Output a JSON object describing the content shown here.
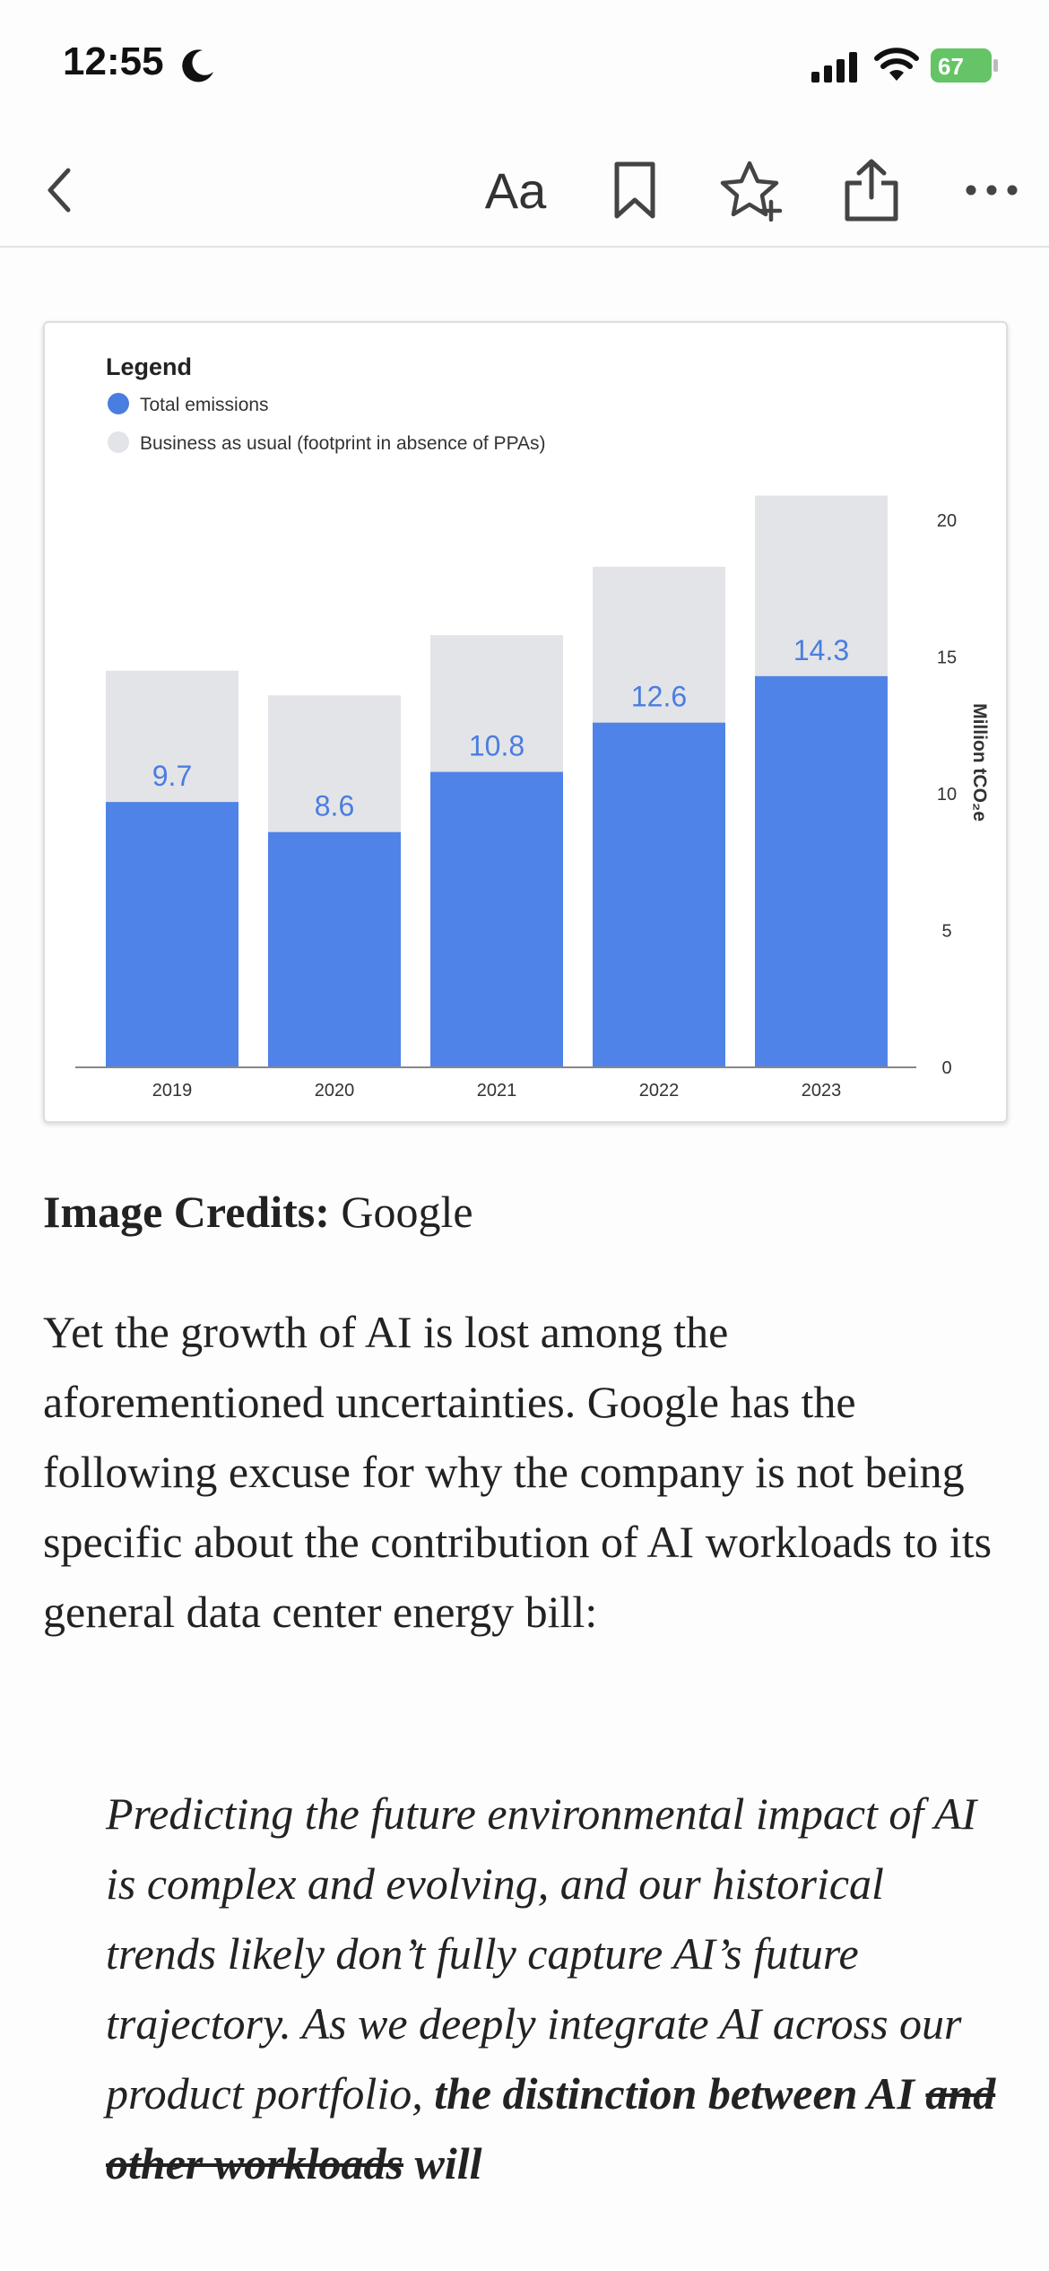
{
  "status_bar": {
    "time": "12:55",
    "battery": "67"
  },
  "toolbar": {
    "font_label": "Aa"
  },
  "chart_data": {
    "type": "bar",
    "legend": {
      "title": "Legend",
      "entries": [
        "Total emissions",
        "Business as usual (footprint in absence of PPAs)"
      ],
      "placement": "top-left"
    },
    "categories": [
      "2019",
      "2020",
      "2021",
      "2022",
      "2023"
    ],
    "series": [
      {
        "name": "Total emissions",
        "values": [
          9.7,
          8.6,
          10.8,
          12.6,
          14.3
        ],
        "color": "#5083e8"
      },
      {
        "name": "Business as usual (footprint in absence of PPAs)",
        "values": [
          14.5,
          13.6,
          15.8,
          18.3,
          20.9
        ],
        "color": "#e3e4e8"
      }
    ],
    "data_labels": [
      "9.7",
      "8.6",
      "10.8",
      "12.6",
      "14.3"
    ],
    "ylabel": "Million tCO₂e",
    "yticks": [
      "0",
      "5",
      "10",
      "15",
      "20"
    ],
    "ylim": [
      0,
      20
    ],
    "y_axis_position": "right",
    "grid": false
  },
  "article": {
    "credit_label": "Image Credits:",
    "credit_value": " Google",
    "paragraph": "Yet the growth of AI is lost among the aforementioned uncertainties. Google has the following excuse for why the company is not being specific about the contribution of AI workloads to its general data center energy bill:",
    "quote_intro": "Predicting the future environmental impact of AI is complex and evolving, and our historical trends likely don’t fully capture AI’s future trajectory. As we deeply integrate AI across our product portfolio, ",
    "quote_bold": "the distinction between AI ",
    "quote_strike": "and other workloads",
    "quote_end": " will"
  }
}
